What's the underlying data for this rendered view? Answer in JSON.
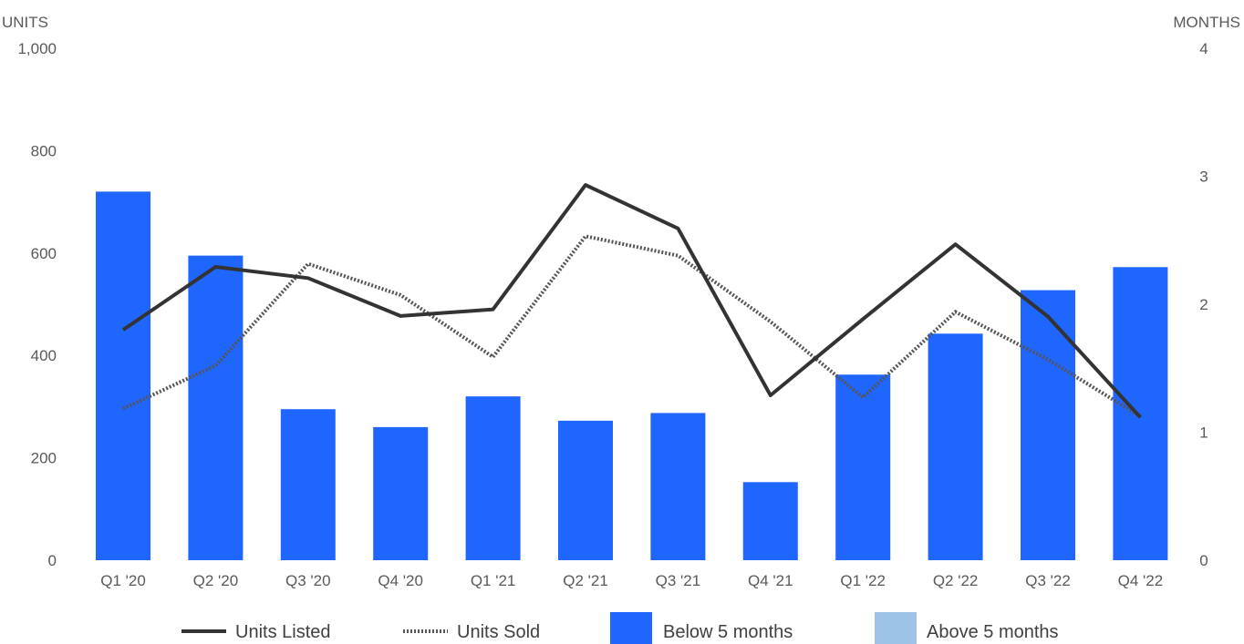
{
  "chart_data": {
    "type": "bar",
    "categories": [
      "Q1 '20",
      "Q2 '20",
      "Q3 '20",
      "Q4 '20",
      "Q1 '21",
      "Q2 '21",
      "Q3 '21",
      "Q4 '21",
      "Q1 '22",
      "Q2 '22",
      "Q3 '22",
      "Q4 '22"
    ],
    "ylabel_left": "UNITS",
    "ylabel_right": "MONTHS",
    "ylim_left": [
      0,
      1000
    ],
    "ylim_right": [
      0,
      4
    ],
    "yticks_left": [
      "0",
      "200",
      "400",
      "600",
      "800",
      "1,000"
    ],
    "yticks_right": [
      "0",
      "1",
      "2",
      "3",
      "4"
    ],
    "grid": false,
    "legend_position": "bottom",
    "series": [
      {
        "name": "Below 5 months",
        "type": "bar",
        "axis": "right",
        "color": "#1f66ff",
        "values": [
          2.88,
          2.38,
          1.18,
          1.04,
          1.28,
          1.09,
          1.15,
          0.61,
          1.45,
          1.77,
          2.11,
          2.29
        ]
      },
      {
        "name": "Above 5 months",
        "type": "bar",
        "axis": "right",
        "color": "#9dc3e6",
        "values": [
          0,
          0,
          0,
          0,
          0,
          0,
          0,
          0,
          0,
          0,
          0,
          0
        ]
      },
      {
        "name": "Units Listed",
        "type": "line",
        "axis": "left",
        "style": "solid",
        "color": "#333333",
        "values": [
          450,
          573,
          551,
          477,
          490,
          733,
          648,
          322,
          471,
          617,
          476,
          279
        ]
      },
      {
        "name": "Units Sold",
        "type": "line",
        "axis": "left",
        "style": "dotted",
        "color": "#555555",
        "values": [
          296,
          380,
          579,
          518,
          397,
          633,
          595,
          466,
          318,
          485,
          392,
          281
        ]
      }
    ]
  }
}
